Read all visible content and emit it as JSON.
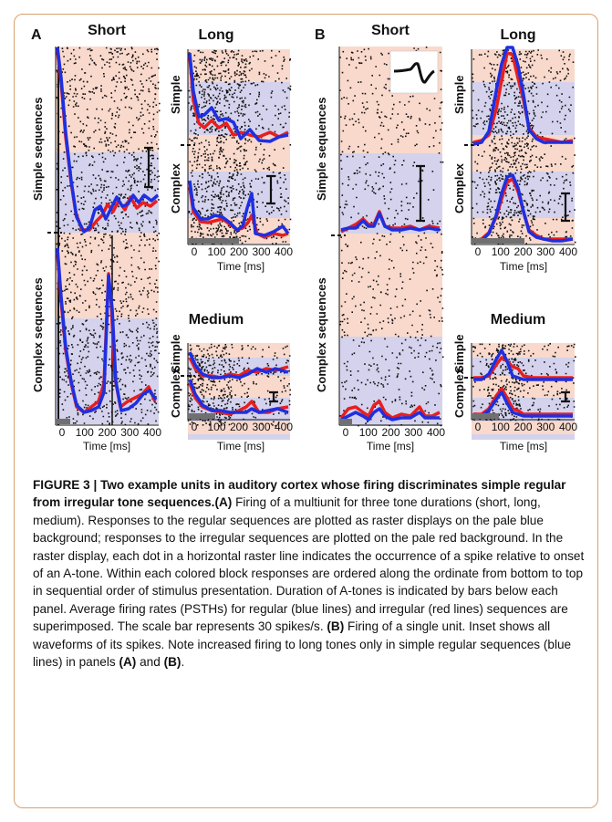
{
  "panels": {
    "A": {
      "letter": "A",
      "short_title": "Short",
      "long_title": "Long",
      "medium_title": "Medium",
      "row_simple_sequences": "Simple sequences",
      "row_complex_sequences": "Complex sequences",
      "row_simple": "Simple",
      "row_complex": "Complex",
      "xlabel": "Time [ms]",
      "ticks_short": [
        "0",
        "100",
        "200",
        "300",
        "400"
      ],
      "ticks_long": [
        "0",
        "100",
        "200",
        "300",
        "400"
      ],
      "ticks_medium": [
        "0",
        "100",
        "200",
        "300",
        "400"
      ]
    },
    "B": {
      "letter": "B",
      "short_title": "Short",
      "long_title": "Long",
      "medium_title": "Medium",
      "row_simple_sequences": "Simple sequences",
      "row_complex_sequences": "Complex sequences",
      "row_simple": "Simple",
      "row_complex": "Complex",
      "xlabel": "Time [ms]",
      "ticks_short": [
        "0",
        "100",
        "200",
        "300",
        "400"
      ],
      "ticks_long": [
        "0",
        "100",
        "200",
        "300",
        "400"
      ],
      "ticks_medium": [
        "0",
        "100",
        "200",
        "300",
        "400"
      ]
    }
  },
  "colors": {
    "regular_background": "#d4d2ec",
    "irregular_background": "#f9d9cc",
    "regular_line": "#1f2fe0",
    "irregular_line": "#e81e1e",
    "border": "#d8a070"
  },
  "caption": {
    "figure_label": "FIGURE 3 | ",
    "title": "Two example units in auditory cortex whose firing discriminates simple regular from irregular tone sequences.",
    "a_label": "(A)",
    "a_text": " Firing of a multiunit for three tone durations (short, long, medium). Responses to the regular sequences are plotted as raster displays on the pale blue background; responses to the irregular sequences are plotted on the pale red background. In the raster display, each dot in a horizontal raster line indicates the occurrence of a spike relative to onset of an A-tone. Within each colored block responses are ordered along the ordinate from bottom to top in sequential order of stimulus presentation. Duration of A-tones is indicated by bars below each panel. Average firing rates (PSTHs) for regular (blue lines) and irregular (red lines) sequences are superimposed. The scale bar represents 30 spikes/s. ",
    "b_label": "(B)",
    "b_text": " Firing of a single unit. Inset shows all waveforms of its spikes. Note increased firing to long tones only in simple regular sequences (blue lines) in panels ",
    "a_ref": "(A)",
    "and_text": " and ",
    "b_ref": "(B)",
    "end": "."
  }
}
